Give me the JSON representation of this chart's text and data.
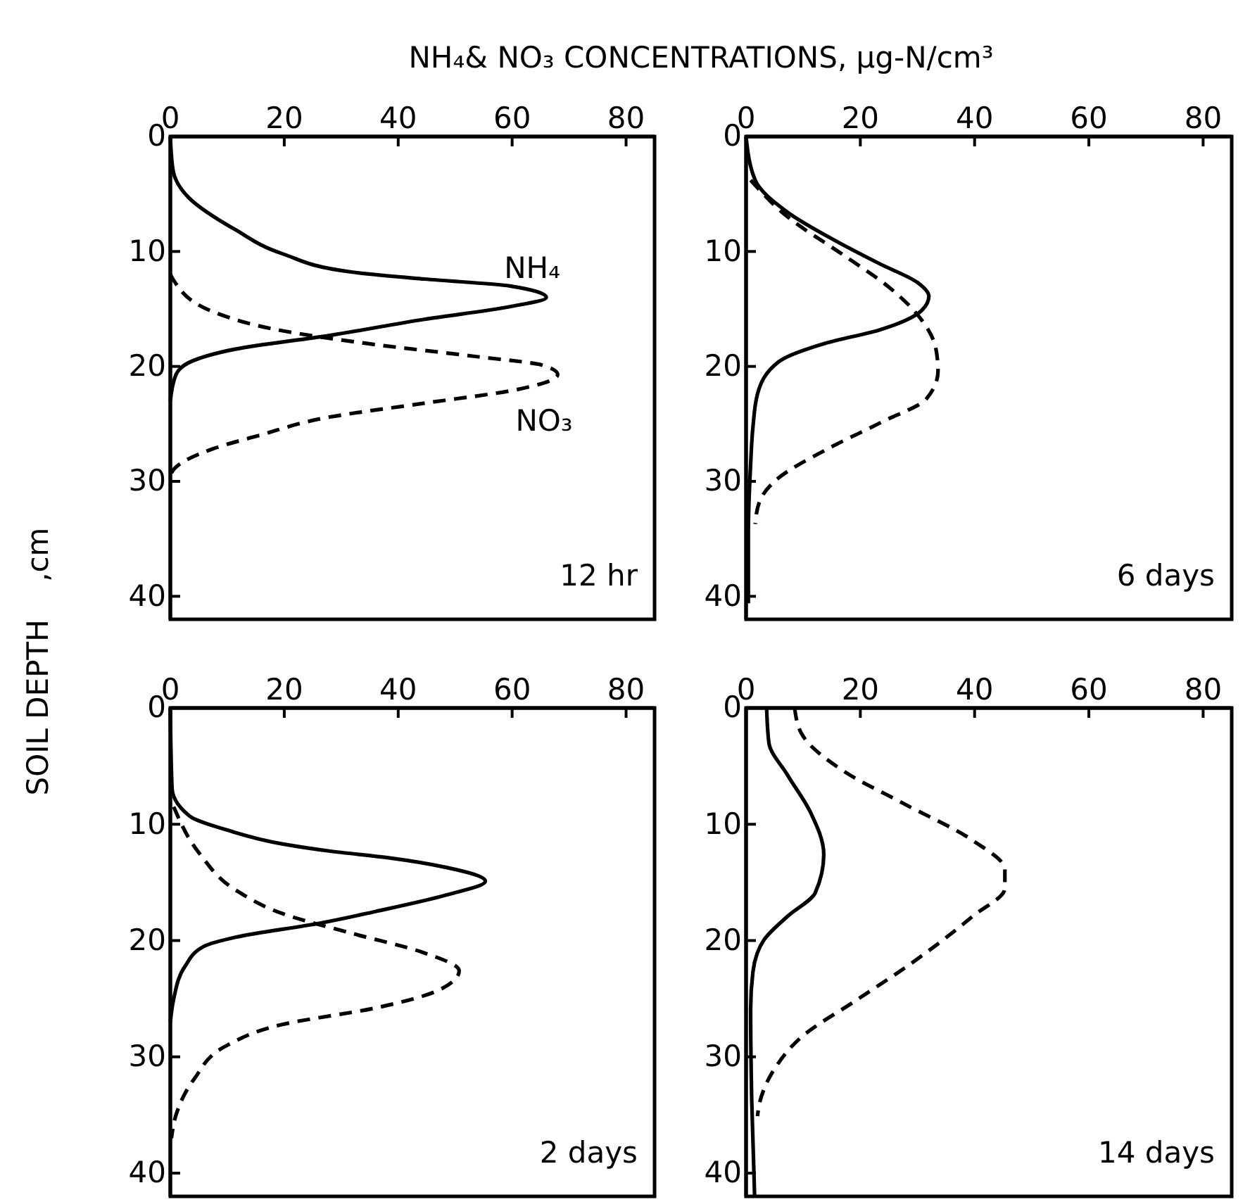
{
  "chart_data": [
    {
      "type": "line",
      "title": "NH₄& NO₃ CONCENTRATIONS, µg-N/cm³",
      "ylabel": "SOIL DEPTH    ,cm",
      "xlim": [
        0,
        85
      ],
      "xticks": [
        0,
        20,
        40,
        60,
        80
      ],
      "ylim": [
        42,
        0
      ],
      "yticks": [
        0,
        10,
        20,
        30,
        40
      ],
      "annotations": [
        "12 hr"
      ],
      "series": [
        {
          "name": "NH₄",
          "color": "#000000",
          "line_style": "solid",
          "x": [
            0,
            0.5,
            3.2,
            11.4,
            19.7,
            32,
            44.6,
            59.6,
            66,
            59.6,
            44.6,
            28,
            11.4,
            4,
            1,
            0
          ],
          "values": [
            0,
            3,
            5.3,
            8.1,
            10.2,
            11.8,
            12.4,
            13,
            14,
            14.8,
            15.9,
            17.3,
            18.5,
            19.5,
            20.7,
            23
          ]
        },
        {
          "name": "NO₃",
          "color": "#000000",
          "line_style": "dashed",
          "x": [
            0,
            0.7,
            7.3,
            19.7,
            36,
            53,
            65.4,
            68,
            61,
            44.6,
            28,
            15.6,
            7.3,
            0.7,
            0
          ],
          "values": [
            12,
            12.6,
            15.2,
            16.9,
            18.1,
            19.1,
            19.9,
            20.7,
            22,
            23.2,
            24.4,
            26,
            27.2,
            28.9,
            29.5
          ]
        }
      ]
    },
    {
      "type": "line",
      "xlim": [
        0,
        85
      ],
      "xticks": [
        0,
        20,
        40,
        60,
        80
      ],
      "ylim": [
        42,
        0
      ],
      "yticks": [
        0,
        10,
        20,
        30,
        40
      ],
      "annotations": [
        "6 days"
      ],
      "series": [
        {
          "color": "#000000",
          "line_style": "solid",
          "x": [
            0,
            1.6,
            7.3,
            15.4,
            23.5,
            30,
            32,
            30.8,
            23.5,
            13.8,
            5.7,
            2,
            1.2,
            0.8,
            0.4,
            0.4
          ],
          "values": [
            0,
            3.8,
            6.6,
            9,
            11.1,
            12.7,
            13.9,
            15.1,
            16.8,
            18,
            19.6,
            22.4,
            25.3,
            28.5,
            34.6,
            40.6
          ]
        },
        {
          "color": "#000000",
          "line_style": "dashed",
          "x": [
            0.8,
            7.3,
            17,
            25,
            30,
            33.2,
            33.6,
            31.6,
            23.5,
            13.8,
            5.7,
            2.4,
            1.6
          ],
          "values": [
            3.8,
            7,
            10.3,
            13.1,
            15.5,
            18.4,
            20.4,
            22.8,
            24.9,
            27.3,
            29.7,
            31.7,
            33.7
          ]
        }
      ]
    },
    {
      "type": "line",
      "xlim": [
        0,
        85
      ],
      "xticks": [
        0,
        20,
        40,
        60,
        80
      ],
      "ylim": [
        42,
        0
      ],
      "yticks": [
        0,
        10,
        20,
        30,
        40
      ],
      "annotations": [
        "2 days"
      ],
      "series": [
        {
          "color": "#000000",
          "line_style": "solid",
          "x": [
            0,
            0.3,
            3.4,
            10,
            19.8,
            27.9,
            38.5,
            48.3,
            55.3,
            48.3,
            36,
            26.3,
            11.6,
            5.9,
            2.6,
            0.6,
            0
          ],
          "values": [
            0,
            6.9,
            9.3,
            10.5,
            11.7,
            12.3,
            12.9,
            13.7,
            14.9,
            16.1,
            17.5,
            18.5,
            19.7,
            20.5,
            22.2,
            25,
            27
          ]
        },
        {
          "color": "#000000",
          "line_style": "dashed",
          "x": [
            0.6,
            5.1,
            11.6,
            19.8,
            32,
            44.2,
            50.7,
            47.4,
            36,
            19.8,
            10,
            4.2,
            1,
            0.2
          ],
          "values": [
            8.5,
            12.5,
            15.7,
            17.7,
            19.4,
            21,
            22.6,
            24.2,
            25.8,
            27.2,
            29,
            31.9,
            35,
            37
          ]
        }
      ]
    },
    {
      "type": "line",
      "xlim": [
        0,
        85
      ],
      "xticks": [
        0,
        20,
        40,
        60,
        80
      ],
      "ylim": [
        42,
        0
      ],
      "yticks": [
        0,
        10,
        20,
        30,
        40
      ],
      "annotations": [
        "14 days"
      ],
      "series": [
        {
          "color": "#000000",
          "line_style": "solid",
          "x": [
            3.6,
            4,
            7.3,
            11.3,
            13.6,
            12.1,
            7.3,
            3.2,
            1.2,
            0.8,
            1,
            1.5
          ],
          "values": [
            0,
            3,
            5.8,
            9,
            12.6,
            15.9,
            17.9,
            19.9,
            22.7,
            25.9,
            33.9,
            42
          ]
        },
        {
          "color": "#000000",
          "line_style": "dashed",
          "x": [
            8.5,
            9.7,
            17,
            27.5,
            39.7,
            45.3,
            45.3,
            39.7,
            29.1,
            19.4,
            9.7,
            4.9,
            2.4,
            2
          ],
          "values": [
            0,
            2.2,
            5.4,
            8.2,
            11.4,
            13.9,
            15.5,
            17.9,
            21.9,
            25.1,
            28.3,
            31.1,
            33.9,
            35.1
          ]
        }
      ]
    }
  ]
}
